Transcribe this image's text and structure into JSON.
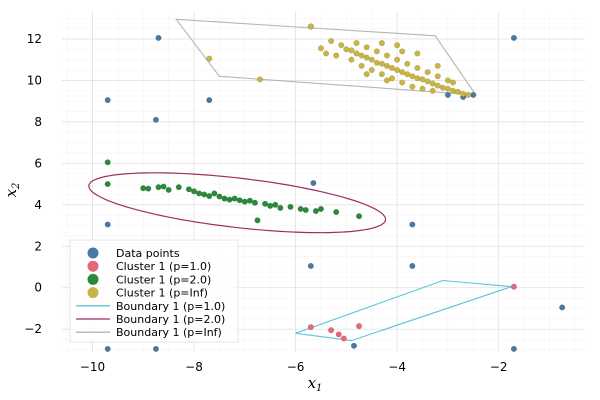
{
  "chart_data": {
    "type": "scatter",
    "title": "",
    "xlabel": "x",
    "xlabel_sub": "1",
    "ylabel": "x",
    "ylabel_sub": "2",
    "xlim": [
      -10.6,
      -0.3
    ],
    "ylim": [
      -3.1,
      13.3
    ],
    "xticks": [
      -10,
      -8,
      -6,
      -4,
      -2
    ],
    "xtick_labels": [
      "−10",
      "−8",
      "−6",
      "−4",
      "−2"
    ],
    "yticks": [
      -2,
      0,
      2,
      4,
      6,
      8,
      10,
      12
    ],
    "ytick_labels": [
      "−2",
      "0",
      "2",
      "4",
      "6",
      "8",
      "10",
      "12"
    ],
    "grid": true,
    "legend_position": "bottom-left",
    "legend": [
      {
        "label": "Data points",
        "kind": "marker",
        "color": "#4a78a6"
      },
      {
        "label": "Cluster 1 (p=1.0)",
        "kind": "marker",
        "color": "#e8677a"
      },
      {
        "label": "Cluster 1 (p=2.0)",
        "kind": "marker",
        "color": "#2a8a3a"
      },
      {
        "label": "Cluster 1 (p=Inf)",
        "kind": "marker",
        "color": "#c9b545"
      },
      {
        "label": "Boundary 1 (p=1.0)",
        "kind": "line",
        "color": "#5cc4e0"
      },
      {
        "label": "Boundary 1 (p=2.0)",
        "kind": "line",
        "color": "#9e2f63"
      },
      {
        "label": "Boundary 1 (p=Inf)",
        "kind": "line",
        "color": "#b5b5b5"
      }
    ],
    "series": [
      {
        "name": "Data points",
        "kind": "scatter",
        "color": "#4a78a6",
        "points": [
          [
            -9.7,
            9.05
          ],
          [
            -8.7,
            12.05
          ],
          [
            -8.75,
            8.1
          ],
          [
            -7.7,
            9.05
          ],
          [
            -5.7,
            12.6
          ],
          [
            -5.65,
            5.05
          ],
          [
            -5.7,
            1.05
          ],
          [
            -3.7,
            3.05
          ],
          [
            -3.7,
            1.05
          ],
          [
            -9.7,
            3.05
          ],
          [
            -9.7,
            -2.95
          ],
          [
            -8.75,
            -2.95
          ],
          [
            -1.7,
            12.05
          ],
          [
            -1.7,
            -2.95
          ],
          [
            -0.75,
            -0.95
          ],
          [
            -3.0,
            9.3
          ],
          [
            -2.7,
            9.2
          ],
          [
            -2.5,
            9.3
          ],
          [
            -4.85,
            -2.8
          ]
        ]
      },
      {
        "name": "Cluster 1 (p=1.0)",
        "kind": "scatter",
        "color": "#e8677a",
        "points": [
          [
            -5.7,
            -1.9
          ],
          [
            -5.3,
            -2.05
          ],
          [
            -5.15,
            -2.25
          ],
          [
            -5.05,
            -2.45
          ],
          [
            -4.75,
            -1.85
          ],
          [
            -1.7,
            0.05
          ]
        ]
      },
      {
        "name": "Cluster 1 (p=2.0)",
        "kind": "scatter",
        "color": "#2a8a3a",
        "points": [
          [
            -9.7,
            6.05
          ],
          [
            -9.7,
            5.0
          ],
          [
            -9.0,
            4.8
          ],
          [
            -8.9,
            4.78
          ],
          [
            -8.7,
            4.85
          ],
          [
            -8.6,
            4.88
          ],
          [
            -8.5,
            4.72
          ],
          [
            -8.3,
            4.85
          ],
          [
            -8.1,
            4.75
          ],
          [
            -8.0,
            4.65
          ],
          [
            -7.9,
            4.55
          ],
          [
            -7.8,
            4.5
          ],
          [
            -7.7,
            4.42
          ],
          [
            -7.6,
            4.55
          ],
          [
            -7.5,
            4.4
          ],
          [
            -7.4,
            4.3
          ],
          [
            -7.3,
            4.25
          ],
          [
            -7.2,
            4.3
          ],
          [
            -7.1,
            4.22
          ],
          [
            -7.0,
            4.15
          ],
          [
            -6.9,
            4.2
          ],
          [
            -6.8,
            4.1
          ],
          [
            -6.75,
            3.25
          ],
          [
            -6.6,
            4.05
          ],
          [
            -6.5,
            3.95
          ],
          [
            -6.4,
            4.0
          ],
          [
            -6.3,
            3.85
          ],
          [
            -6.1,
            3.9
          ],
          [
            -5.9,
            3.8
          ],
          [
            -5.8,
            3.75
          ],
          [
            -5.6,
            3.7
          ],
          [
            -5.5,
            3.8
          ],
          [
            -5.2,
            3.65
          ],
          [
            -4.75,
            3.45
          ]
        ]
      },
      {
        "name": "Cluster 1 (p=Inf)",
        "kind": "scatter",
        "color": "#c9b545",
        "points": [
          [
            -5.7,
            12.6
          ],
          [
            -7.7,
            11.05
          ],
          [
            -6.7,
            10.05
          ],
          [
            -5.3,
            11.9
          ],
          [
            -5.1,
            11.7
          ],
          [
            -5.0,
            11.5
          ],
          [
            -4.9,
            11.45
          ],
          [
            -4.8,
            11.3
          ],
          [
            -4.7,
            11.2
          ],
          [
            -4.6,
            11.1
          ],
          [
            -4.5,
            11.0
          ],
          [
            -4.4,
            10.85
          ],
          [
            -4.3,
            10.8
          ],
          [
            -4.2,
            10.7
          ],
          [
            -4.1,
            10.6
          ],
          [
            -4.0,
            10.5
          ],
          [
            -3.9,
            10.4
          ],
          [
            -3.8,
            10.3
          ],
          [
            -3.7,
            10.2
          ],
          [
            -3.6,
            10.1
          ],
          [
            -3.5,
            10.05
          ],
          [
            -3.4,
            9.95
          ],
          [
            -3.3,
            9.85
          ],
          [
            -3.2,
            9.75
          ],
          [
            -3.1,
            9.65
          ],
          [
            -3.0,
            9.6
          ],
          [
            -2.9,
            9.5
          ],
          [
            -2.8,
            9.45
          ],
          [
            -2.7,
            9.35
          ],
          [
            -2.6,
            9.3
          ],
          [
            -4.8,
            11.8
          ],
          [
            -4.6,
            11.6
          ],
          [
            -4.4,
            11.4
          ],
          [
            -4.2,
            11.2
          ],
          [
            -4.0,
            11.0
          ],
          [
            -3.8,
            10.8
          ],
          [
            -3.6,
            10.6
          ],
          [
            -3.4,
            10.4
          ],
          [
            -3.2,
            10.2
          ],
          [
            -3.0,
            10.0
          ],
          [
            -4.7,
            10.7
          ],
          [
            -4.5,
            10.5
          ],
          [
            -4.3,
            10.3
          ],
          [
            -4.1,
            10.1
          ],
          [
            -3.9,
            9.9
          ],
          [
            -3.7,
            9.7
          ],
          [
            -3.5,
            9.6
          ],
          [
            -4.9,
            11.0
          ],
          [
            -5.2,
            11.2
          ],
          [
            -3.3,
            9.5
          ],
          [
            -4.0,
            11.7
          ],
          [
            -3.6,
            11.3
          ],
          [
            -3.9,
            11.4
          ],
          [
            -4.3,
            11.8
          ],
          [
            -5.5,
            11.55
          ],
          [
            -5.4,
            11.3
          ],
          [
            -3.2,
            10.7
          ],
          [
            -2.9,
            9.9
          ],
          [
            -4.6,
            10.3
          ],
          [
            -4.2,
            10.0
          ]
        ]
      },
      {
        "name": "Boundary 1 (p=1.0)",
        "kind": "polygon",
        "color": "#5cc4e0",
        "points": [
          [
            -6.0,
            -2.2
          ],
          [
            -3.1,
            0.35
          ],
          [
            -1.75,
            0.05
          ],
          [
            -4.9,
            -2.55
          ]
        ]
      },
      {
        "name": "Boundary 1 (p=Inf)",
        "kind": "polygon",
        "color": "#b5b5b5",
        "points": [
          [
            -8.35,
            12.95
          ],
          [
            -3.25,
            12.15
          ],
          [
            -2.45,
            9.3
          ],
          [
            -7.5,
            10.2
          ]
        ]
      },
      {
        "name": "Boundary 1 (p=2.0)",
        "kind": "ellipse",
        "color": "#9e2f63",
        "center": [
          -7.15,
          4.1
        ],
        "semi_major": 3.05,
        "semi_minor": 1.15,
        "angle_deg": -18
      }
    ]
  }
}
